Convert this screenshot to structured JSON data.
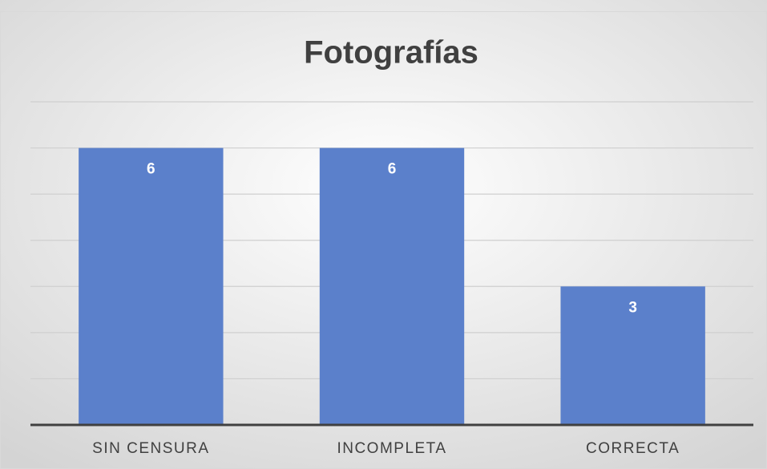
{
  "chart_data": {
    "type": "bar",
    "title": "Fotografías",
    "categories": [
      "SIN CENSURA",
      "INCOMPLETA",
      "CORRECTA"
    ],
    "values": [
      6,
      6,
      3
    ],
    "color": "#5b80cb",
    "ylim": [
      0,
      7
    ],
    "yticks": [
      0,
      1,
      2,
      3,
      4,
      5,
      6,
      7
    ],
    "grid": true,
    "data_labels": true
  }
}
